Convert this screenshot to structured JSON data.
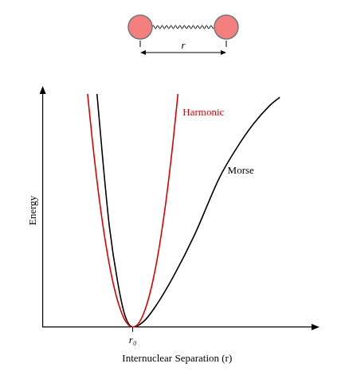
{
  "chart_data": {
    "type": "line",
    "x_label": "Internuclear Separation (r)",
    "y_label": "Energy",
    "xlim": [
      0,
      10
    ],
    "ylim": [
      0,
      10
    ],
    "xticks": [
      {
        "value": 3.35,
        "label": "r₀"
      }
    ],
    "yticks": [],
    "grid": false,
    "tick_labels": "x",
    "series": [
      {
        "name": "Harmonic",
        "color": "#e00000",
        "x": [
          1.67,
          1.85,
          2.1,
          2.35,
          2.6,
          2.85,
          3.1,
          3.35,
          3.6,
          3.85,
          4.1,
          4.35,
          4.6,
          4.85,
          5.03
        ],
        "values": [
          10,
          7.97,
          5.53,
          3.54,
          1.99,
          0.89,
          0.22,
          0,
          0.22,
          0.89,
          1.99,
          3.54,
          5.53,
          7.97,
          10
        ]
      },
      {
        "name": "Morse",
        "color": "#000000",
        "x": [
          2.02,
          2.24,
          2.48,
          2.8,
          3.07,
          3.35,
          3.79,
          4.25,
          4.88,
          5.65,
          6.58,
          7.2,
          7.83,
          8.45,
          8.82
        ],
        "values": [
          10,
          7.12,
          4.32,
          1.86,
          0.46,
          0,
          0.28,
          0.98,
          2.21,
          3.96,
          6.42,
          7.65,
          8.7,
          9.51,
          9.86
        ]
      }
    ]
  },
  "diagram": {
    "label": "r"
  }
}
